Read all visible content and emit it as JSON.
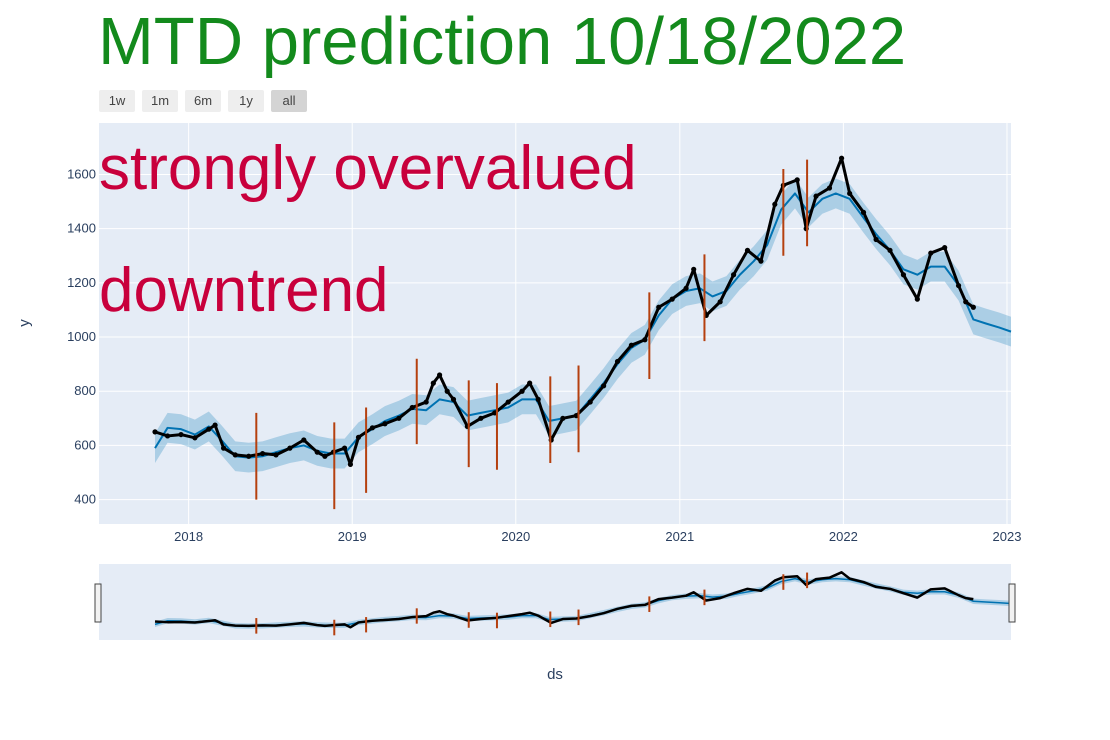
{
  "title": "MTD prediction 10/18/2022",
  "range_buttons": [
    {
      "label": "1w",
      "active": false
    },
    {
      "label": "1m",
      "active": false
    },
    {
      "label": "6m",
      "active": false
    },
    {
      "label": "1y",
      "active": false
    },
    {
      "label": "all",
      "active": true
    }
  ],
  "annotations": [
    "strongly overvalued",
    "downtrend"
  ],
  "colors": {
    "title": "#138a1c",
    "annotation": "#c8003c",
    "plot_bg": "#e5ecf6",
    "actual": "#000000",
    "forecast": "#0072b2",
    "band": "rgba(0,114,178,0.25)",
    "changepoint": "#b5400f"
  },
  "chart_data": {
    "type": "line",
    "xlabel": "ds",
    "ylabel": "y",
    "x_range": [
      "2017-06-15",
      "2023-01-10"
    ],
    "y_range": [
      310,
      1790
    ],
    "y_ticks": [
      400,
      600,
      800,
      1000,
      1200,
      1400,
      1600
    ],
    "x_ticks": [
      "2018",
      "2019",
      "2020",
      "2021",
      "2022",
      "2023"
    ],
    "grid": true,
    "series": [
      {
        "role": "actual",
        "markers": true,
        "points": [
          [
            "2017-10-18",
            650
          ],
          [
            "2017-11-15",
            635
          ],
          [
            "2017-12-15",
            640
          ],
          [
            "2018-01-15",
            628
          ],
          [
            "2018-02-15",
            660
          ],
          [
            "2018-03-01",
            675
          ],
          [
            "2018-03-20",
            590
          ],
          [
            "2018-04-15",
            565
          ],
          [
            "2018-05-15",
            560
          ],
          [
            "2018-06-15",
            570
          ],
          [
            "2018-07-15",
            565
          ],
          [
            "2018-08-15",
            590
          ],
          [
            "2018-09-15",
            620
          ],
          [
            "2018-10-15",
            575
          ],
          [
            "2018-11-01",
            560
          ],
          [
            "2018-11-20",
            575
          ],
          [
            "2018-12-15",
            590
          ],
          [
            "2018-12-28",
            530
          ],
          [
            "2019-01-15",
            630
          ],
          [
            "2019-02-15",
            665
          ],
          [
            "2019-03-15",
            680
          ],
          [
            "2019-04-15",
            700
          ],
          [
            "2019-05-15",
            740
          ],
          [
            "2019-06-15",
            760
          ],
          [
            "2019-07-01",
            830
          ],
          [
            "2019-07-15",
            860
          ],
          [
            "2019-08-01",
            800
          ],
          [
            "2019-08-15",
            770
          ],
          [
            "2019-09-15",
            670
          ],
          [
            "2019-10-15",
            700
          ],
          [
            "2019-11-15",
            720
          ],
          [
            "2019-12-15",
            760
          ],
          [
            "2020-01-15",
            800
          ],
          [
            "2020-02-01",
            830
          ],
          [
            "2020-02-20",
            770
          ],
          [
            "2020-03-20",
            620
          ],
          [
            "2020-04-15",
            700
          ],
          [
            "2020-05-15",
            710
          ],
          [
            "2020-06-15",
            760
          ],
          [
            "2020-07-15",
            820
          ],
          [
            "2020-08-15",
            910
          ],
          [
            "2020-09-15",
            970
          ],
          [
            "2020-10-15",
            990
          ],
          [
            "2020-11-15",
            1110
          ],
          [
            "2020-12-15",
            1140
          ],
          [
            "2021-01-15",
            1180
          ],
          [
            "2021-02-01",
            1250
          ],
          [
            "2021-03-01",
            1080
          ],
          [
            "2021-04-01",
            1130
          ],
          [
            "2021-05-01",
            1230
          ],
          [
            "2021-06-01",
            1320
          ],
          [
            "2021-07-01",
            1280
          ],
          [
            "2021-08-01",
            1490
          ],
          [
            "2021-08-20",
            1560
          ],
          [
            "2021-09-20",
            1580
          ],
          [
            "2021-10-10",
            1400
          ],
          [
            "2021-11-01",
            1520
          ],
          [
            "2021-12-01",
            1550
          ],
          [
            "2021-12-28",
            1660
          ],
          [
            "2022-01-15",
            1530
          ],
          [
            "2022-02-15",
            1460
          ],
          [
            "2022-03-15",
            1360
          ],
          [
            "2022-04-15",
            1320
          ],
          [
            "2022-05-15",
            1230
          ],
          [
            "2022-06-15",
            1140
          ],
          [
            "2022-07-15",
            1310
          ],
          [
            "2022-08-15",
            1330
          ],
          [
            "2022-09-15",
            1190
          ],
          [
            "2022-10-01",
            1130
          ],
          [
            "2022-10-18",
            1110
          ]
        ]
      },
      {
        "role": "forecast",
        "points": [
          [
            "2017-10-18",
            590
          ],
          [
            "2017-11-15",
            665
          ],
          [
            "2017-12-15",
            660
          ],
          [
            "2018-01-15",
            640
          ],
          [
            "2018-02-15",
            670
          ],
          [
            "2018-03-15",
            620
          ],
          [
            "2018-04-15",
            560
          ],
          [
            "2018-05-15",
            555
          ],
          [
            "2018-06-15",
            560
          ],
          [
            "2018-07-15",
            575
          ],
          [
            "2018-08-15",
            590
          ],
          [
            "2018-09-15",
            600
          ],
          [
            "2018-10-15",
            580
          ],
          [
            "2018-11-15",
            570
          ],
          [
            "2018-12-15",
            570
          ],
          [
            "2019-01-15",
            630
          ],
          [
            "2019-02-15",
            660
          ],
          [
            "2019-03-15",
            690
          ],
          [
            "2019-04-15",
            710
          ],
          [
            "2019-05-15",
            735
          ],
          [
            "2019-06-15",
            730
          ],
          [
            "2019-07-15",
            770
          ],
          [
            "2019-08-15",
            760
          ],
          [
            "2019-09-15",
            710
          ],
          [
            "2019-10-15",
            720
          ],
          [
            "2019-11-15",
            730
          ],
          [
            "2019-12-15",
            740
          ],
          [
            "2020-01-15",
            770
          ],
          [
            "2020-02-15",
            770
          ],
          [
            "2020-03-15",
            690
          ],
          [
            "2020-04-15",
            700
          ],
          [
            "2020-05-15",
            710
          ],
          [
            "2020-06-15",
            770
          ],
          [
            "2020-07-15",
            830
          ],
          [
            "2020-08-15",
            900
          ],
          [
            "2020-09-15",
            960
          ],
          [
            "2020-10-15",
            990
          ],
          [
            "2020-11-15",
            1080
          ],
          [
            "2020-12-15",
            1140
          ],
          [
            "2021-01-15",
            1170
          ],
          [
            "2021-02-15",
            1180
          ],
          [
            "2021-03-15",
            1150
          ],
          [
            "2021-04-15",
            1170
          ],
          [
            "2021-05-15",
            1230
          ],
          [
            "2021-06-15",
            1280
          ],
          [
            "2021-07-15",
            1340
          ],
          [
            "2021-08-15",
            1470
          ],
          [
            "2021-09-15",
            1530
          ],
          [
            "2021-10-15",
            1460
          ],
          [
            "2021-11-15",
            1510
          ],
          [
            "2021-12-15",
            1530
          ],
          [
            "2022-01-15",
            1510
          ],
          [
            "2022-02-15",
            1440
          ],
          [
            "2022-03-15",
            1380
          ],
          [
            "2022-04-15",
            1320
          ],
          [
            "2022-05-15",
            1250
          ],
          [
            "2022-06-15",
            1230
          ],
          [
            "2022-07-15",
            1260
          ],
          [
            "2022-08-15",
            1260
          ],
          [
            "2022-09-15",
            1190
          ],
          [
            "2022-10-18",
            1065
          ],
          [
            "2022-11-15",
            1050
          ],
          [
            "2022-12-15",
            1035
          ],
          [
            "2023-01-10",
            1020
          ]
        ],
        "band_halfwidth": 55
      }
    ],
    "changepoints": [
      {
        "date": "2018-06-01",
        "low": 400,
        "high": 720
      },
      {
        "date": "2018-11-22",
        "low": 365,
        "high": 685
      },
      {
        "date": "2019-02-01",
        "low": 425,
        "high": 740
      },
      {
        "date": "2019-05-25",
        "low": 605,
        "high": 920
      },
      {
        "date": "2019-09-18",
        "low": 520,
        "high": 840
      },
      {
        "date": "2019-11-20",
        "low": 510,
        "high": 830
      },
      {
        "date": "2020-03-18",
        "low": 535,
        "high": 855
      },
      {
        "date": "2020-05-20",
        "low": 575,
        "high": 895
      },
      {
        "date": "2020-10-25",
        "low": 845,
        "high": 1165
      },
      {
        "date": "2021-02-25",
        "low": 985,
        "high": 1305
      },
      {
        "date": "2021-08-20",
        "low": 1300,
        "high": 1620
      },
      {
        "date": "2021-10-12",
        "low": 1335,
        "high": 1655
      }
    ]
  }
}
